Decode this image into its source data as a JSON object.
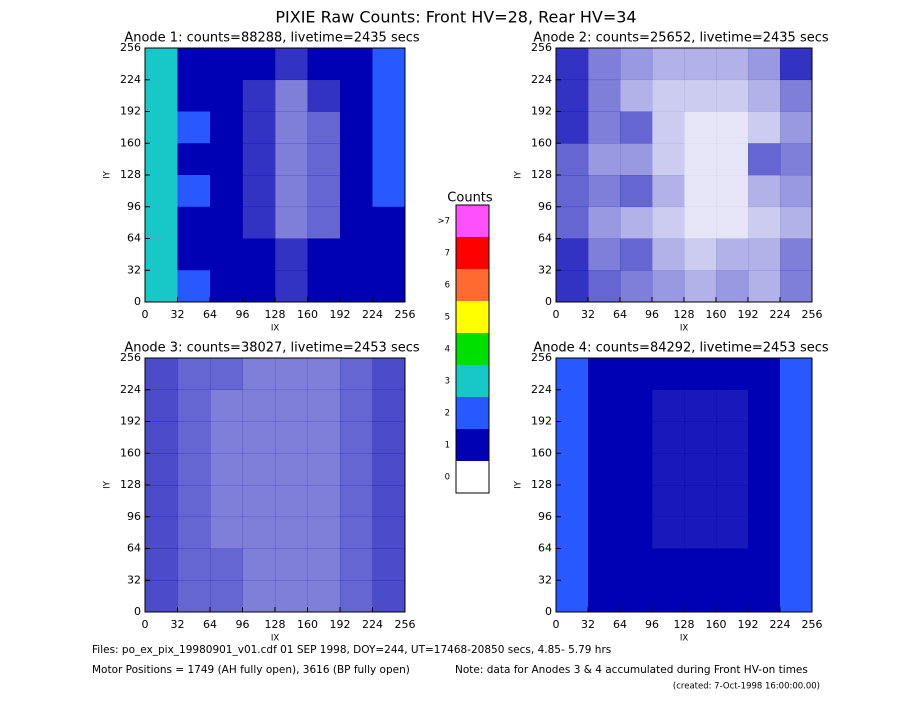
{
  "title": "PIXIE Raw Counts:  Front HV=28, Rear HV=34",
  "colorbar": {
    "title": "Counts",
    "ticks": [
      0,
      1,
      2,
      3,
      4,
      5,
      6,
      7,
      {
        "value": 8,
        "label": ">7"
      }
    ],
    "colors": [
      "#ffffff",
      "#0000b4",
      "#2858ff",
      "#18c8c8",
      "#00e000",
      "#ffff00",
      "#ff6a30",
      "#ff0000",
      "#ff50ff"
    ]
  },
  "chart_data": [
    {
      "type": "heatmap",
      "title": "Anode 1: counts=88288, livetime=2435 secs",
      "xlabel": "IX",
      "ylabel": "IY",
      "xlim": [
        0,
        256
      ],
      "ylim": [
        0,
        256
      ],
      "xticks": [
        0,
        32,
        64,
        96,
        128,
        160,
        192,
        224,
        256
      ],
      "yticks": [
        0,
        32,
        64,
        96,
        128,
        160,
        192,
        224,
        256
      ],
      "values": [
        [
          3,
          1.5,
          1.2,
          1,
          0.8,
          1,
          1.5,
          2
        ],
        [
          3,
          1.5,
          1,
          0.8,
          0.5,
          0.8,
          1.2,
          2
        ],
        [
          3,
          2,
          1.5,
          0.8,
          0.5,
          0.6,
          1,
          2
        ],
        [
          3,
          1.5,
          1,
          0.8,
          0.5,
          0.6,
          1.2,
          2.5
        ],
        [
          3,
          2,
          1.8,
          0.8,
          0.5,
          0.6,
          1.5,
          2.5
        ],
        [
          3,
          1.5,
          1,
          0.8,
          0.5,
          0.6,
          1,
          1.5
        ],
        [
          3,
          1.5,
          1.5,
          1,
          0.8,
          1,
          1,
          1.5
        ],
        [
          3,
          2,
          1.5,
          1,
          0.8,
          1.2,
          1,
          1.5
        ]
      ]
    },
    {
      "type": "heatmap",
      "title": "Anode 2: counts=25652, livetime=2435 secs",
      "xlabel": "IX",
      "ylabel": "IY",
      "xlim": [
        0,
        256
      ],
      "ylim": [
        0,
        256
      ],
      "xticks": [
        0,
        32,
        64,
        96,
        128,
        160,
        192,
        224,
        256
      ],
      "yticks": [
        0,
        32,
        64,
        96,
        128,
        160,
        192,
        224,
        256
      ],
      "values": [
        [
          0.8,
          0.5,
          0.4,
          0.3,
          0.3,
          0.3,
          0.4,
          0.8
        ],
        [
          0.8,
          0.5,
          0.3,
          0.2,
          0.2,
          0.2,
          0.3,
          0.5
        ],
        [
          0.8,
          0.5,
          0.6,
          0.2,
          0.1,
          0.1,
          0.2,
          0.4
        ],
        [
          0.6,
          0.4,
          0.4,
          0.2,
          0.1,
          0.1,
          0.6,
          0.5
        ],
        [
          0.6,
          0.5,
          0.6,
          0.3,
          0.1,
          0.1,
          0.3,
          0.4
        ],
        [
          0.6,
          0.4,
          0.3,
          0.2,
          0.1,
          0.1,
          0.2,
          0.3
        ],
        [
          0.8,
          0.5,
          0.6,
          0.3,
          0.2,
          0.3,
          0.3,
          0.5
        ],
        [
          0.8,
          0.6,
          0.5,
          0.4,
          0.3,
          0.4,
          0.3,
          0.5
        ]
      ]
    },
    {
      "type": "heatmap",
      "title": "Anode 3: counts=38027, livetime=2453 secs",
      "xlabel": "IX",
      "ylabel": "IY",
      "xlim": [
        0,
        256
      ],
      "ylim": [
        0,
        256
      ],
      "xticks": [
        0,
        32,
        64,
        96,
        128,
        160,
        192,
        224,
        256
      ],
      "yticks": [
        0,
        32,
        64,
        96,
        128,
        160,
        192,
        224,
        256
      ],
      "values": [
        [
          0.7,
          0.6,
          0.6,
          0.5,
          0.5,
          0.5,
          0.6,
          0.7
        ],
        [
          0.7,
          0.6,
          0.5,
          0.5,
          0.5,
          0.5,
          0.6,
          0.7
        ],
        [
          0.7,
          0.6,
          0.5,
          0.5,
          0.5,
          0.5,
          0.6,
          0.7
        ],
        [
          0.7,
          0.6,
          0.5,
          0.5,
          0.5,
          0.5,
          0.6,
          0.7
        ],
        [
          0.7,
          0.6,
          0.5,
          0.5,
          0.5,
          0.5,
          0.6,
          0.7
        ],
        [
          0.7,
          0.6,
          0.5,
          0.5,
          0.5,
          0.5,
          0.6,
          0.7
        ],
        [
          0.7,
          0.6,
          0.6,
          0.5,
          0.5,
          0.5,
          0.6,
          0.7
        ],
        [
          0.7,
          0.6,
          0.6,
          0.5,
          0.5,
          0.5,
          0.6,
          0.7
        ]
      ]
    },
    {
      "type": "heatmap",
      "title": "Anode 4: counts=84292, livetime=2453 secs",
      "xlabel": "IX",
      "ylabel": "IY",
      "xlim": [
        0,
        256
      ],
      "ylim": [
        0,
        256
      ],
      "xticks": [
        0,
        32,
        64,
        96,
        128,
        160,
        192,
        224,
        256
      ],
      "yticks": [
        0,
        32,
        64,
        96,
        128,
        160,
        192,
        224,
        256
      ],
      "values": [
        [
          2.5,
          1.5,
          1.2,
          1,
          1,
          1,
          1.3,
          2.5
        ],
        [
          2.5,
          1.3,
          1,
          0.9,
          0.9,
          0.9,
          1.2,
          2.5
        ],
        [
          2.5,
          1.3,
          1,
          0.9,
          0.9,
          0.9,
          1.2,
          2.5
        ],
        [
          2.5,
          1.3,
          1,
          0.9,
          0.9,
          0.9,
          1.2,
          2.5
        ],
        [
          2.5,
          1.3,
          1,
          0.9,
          0.9,
          0.9,
          1.2,
          2.5
        ],
        [
          2.5,
          1.3,
          1,
          0.9,
          0.9,
          0.9,
          1.2,
          2.5
        ],
        [
          2.5,
          1.3,
          1.1,
          1,
          1,
          1,
          1.2,
          2.5
        ],
        [
          2.5,
          1.5,
          1.2,
          1,
          1,
          1,
          1.3,
          2.5
        ]
      ]
    }
  ],
  "footer": {
    "files": "Files: po_ex_pix_19980901_v01.cdf    01 SEP 1998, DOY=244, UT=17468-20850 secs,  4.85- 5.79 hrs",
    "motor": "Motor Positions = 1749 (AH fully open), 3616 (BP fully open)",
    "note": "Note: data for Anodes 3 & 4 accumulated during Front HV-on times",
    "created": "(created:  7-Oct-1998 16:00:00.00)"
  }
}
